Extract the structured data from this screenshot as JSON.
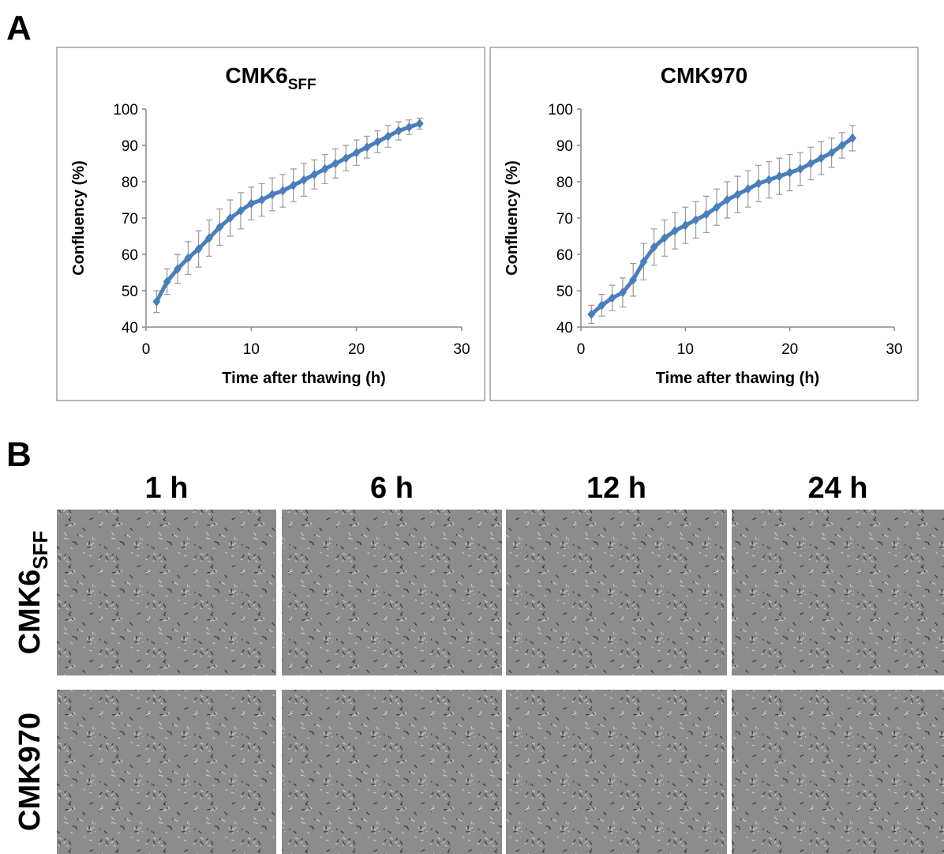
{
  "panel_labels": [
    "A",
    "B"
  ],
  "chart_data": [
    {
      "type": "line",
      "title": "CMK6",
      "title_subscript": "SFF",
      "x_label": "Time after thawing (h)",
      "y_label": "Confluency (%)",
      "x": [
        1,
        2,
        3,
        4,
        5,
        6,
        7,
        8,
        9,
        10,
        11,
        12,
        13,
        14,
        15,
        16,
        17,
        18,
        19,
        20,
        21,
        22,
        23,
        24,
        25,
        26
      ],
      "series": [
        {
          "color": "#4a7ebb",
          "values": [
            47,
            52.5,
            56,
            59,
            61.5,
            64.5,
            67.5,
            70,
            72,
            74,
            75,
            76.5,
            77.5,
            79,
            80.5,
            82,
            83.5,
            85,
            86.5,
            88,
            89.5,
            91,
            92.5,
            94,
            95,
            96
          ],
          "errors": [
            3,
            3.5,
            4,
            4.5,
            5,
            5,
            5,
            5,
            5,
            4.5,
            4.5,
            4.5,
            4.5,
            4.5,
            4.5,
            4,
            4,
            4,
            3.5,
            3.5,
            3,
            3,
            3,
            2.5,
            2,
            1.5
          ]
        }
      ],
      "xlim": [
        0,
        30
      ],
      "xticks": [
        0,
        10,
        20,
        30
      ],
      "ylim": [
        40,
        100
      ],
      "yticks": [
        40,
        50,
        60,
        70,
        80,
        90,
        100
      ]
    },
    {
      "type": "line",
      "title": "CMK970",
      "x_label": "Time after thawing (h)",
      "y_label": "Confluency (%)",
      "x": [
        1,
        2,
        3,
        4,
        5,
        6,
        7,
        8,
        9,
        10,
        11,
        12,
        13,
        14,
        15,
        16,
        17,
        18,
        19,
        20,
        21,
        22,
        23,
        24,
        25,
        26
      ],
      "series": [
        {
          "color": "#4a7ebb",
          "values": [
            43.5,
            46,
            48,
            49.5,
            53,
            58,
            62,
            64.5,
            66.5,
            68,
            69.5,
            71,
            73,
            75,
            76.5,
            78,
            79.5,
            80.5,
            81.5,
            82.5,
            83.5,
            85,
            86.5,
            88,
            90,
            92
          ],
          "errors": [
            2.5,
            3,
            3.5,
            4,
            4.5,
            5,
            5,
            5,
            5,
            5,
            5,
            5,
            5,
            5,
            5,
            5,
            5,
            5,
            5,
            5,
            4.5,
            4.5,
            4.5,
            4,
            3.5,
            3.5
          ]
        }
      ],
      "xlim": [
        0,
        30
      ],
      "xticks": [
        0,
        10,
        20,
        30
      ],
      "ylim": [
        40,
        100
      ],
      "yticks": [
        40,
        50,
        60,
        70,
        80,
        90,
        100
      ]
    }
  ],
  "image_grid": {
    "columns": [
      "1 h",
      "6 h",
      "12 h",
      "24 h"
    ],
    "rows": [
      {
        "label": "CMK6",
        "subscript": "SFF"
      },
      {
        "label": "CMK970"
      }
    ]
  }
}
